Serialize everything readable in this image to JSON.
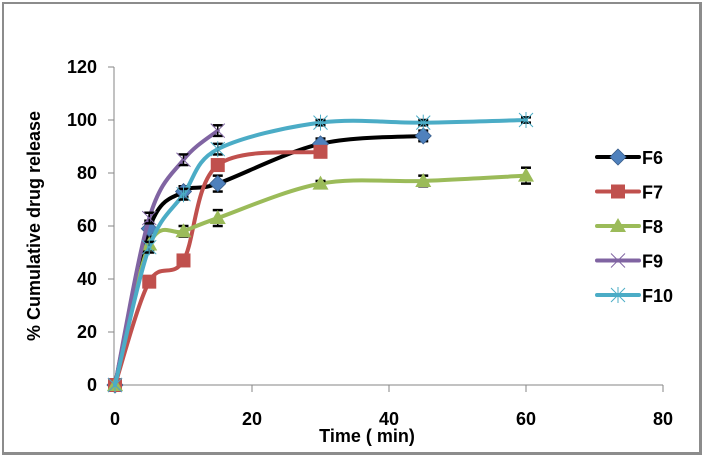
{
  "chart_data": {
    "type": "line",
    "title": "",
    "xlabel": "Time ( min)",
    "ylabel": "% Cumulative drug release",
    "xlim": [
      0,
      80
    ],
    "ylim": [
      0,
      120
    ],
    "xticks": [
      0,
      20,
      40,
      60,
      80
    ],
    "yticks": [
      0,
      20,
      40,
      60,
      80,
      100,
      120
    ],
    "grid": false,
    "legend_position": "right",
    "smooth": true,
    "series": [
      {
        "name": "F6",
        "color": "#000000",
        "marker": "diamond",
        "marker_color": "#4f81bd",
        "x": [
          0,
          5,
          10,
          15,
          30,
          45
        ],
        "y": [
          0,
          59,
          73,
          76,
          91,
          94
        ],
        "err": [
          0,
          3,
          2,
          3,
          2,
          2
        ]
      },
      {
        "name": "F7",
        "color": "#c0504d",
        "marker": "square",
        "marker_color": "#c0504d",
        "x": [
          0,
          5,
          10,
          15,
          30
        ],
        "y": [
          0,
          39,
          47,
          83,
          88
        ],
        "err": [
          0,
          2,
          2,
          2,
          1
        ]
      },
      {
        "name": "F8",
        "color": "#9bbb59",
        "marker": "triangle",
        "marker_color": "#9bbb59",
        "x": [
          0,
          5,
          10,
          15,
          30,
          45,
          60
        ],
        "y": [
          0,
          53,
          58,
          63,
          76,
          77,
          79
        ],
        "err": [
          0,
          2,
          2,
          3,
          1,
          2,
          3
        ]
      },
      {
        "name": "F9",
        "color": "#8064a2",
        "marker": "x",
        "marker_color": "#8064a2",
        "x": [
          0,
          5,
          10,
          15
        ],
        "y": [
          0,
          63,
          85,
          96
        ],
        "err": [
          0,
          2,
          2,
          2
        ]
      },
      {
        "name": "F10",
        "color": "#4bacc6",
        "marker": "asterisk",
        "marker_color": "#4bacc6",
        "x": [
          0,
          5,
          10,
          15,
          30,
          45,
          60
        ],
        "y": [
          0,
          52,
          72,
          89,
          99,
          99,
          100
        ],
        "err": [
          0,
          2,
          2,
          2,
          1,
          1,
          1
        ]
      }
    ]
  }
}
